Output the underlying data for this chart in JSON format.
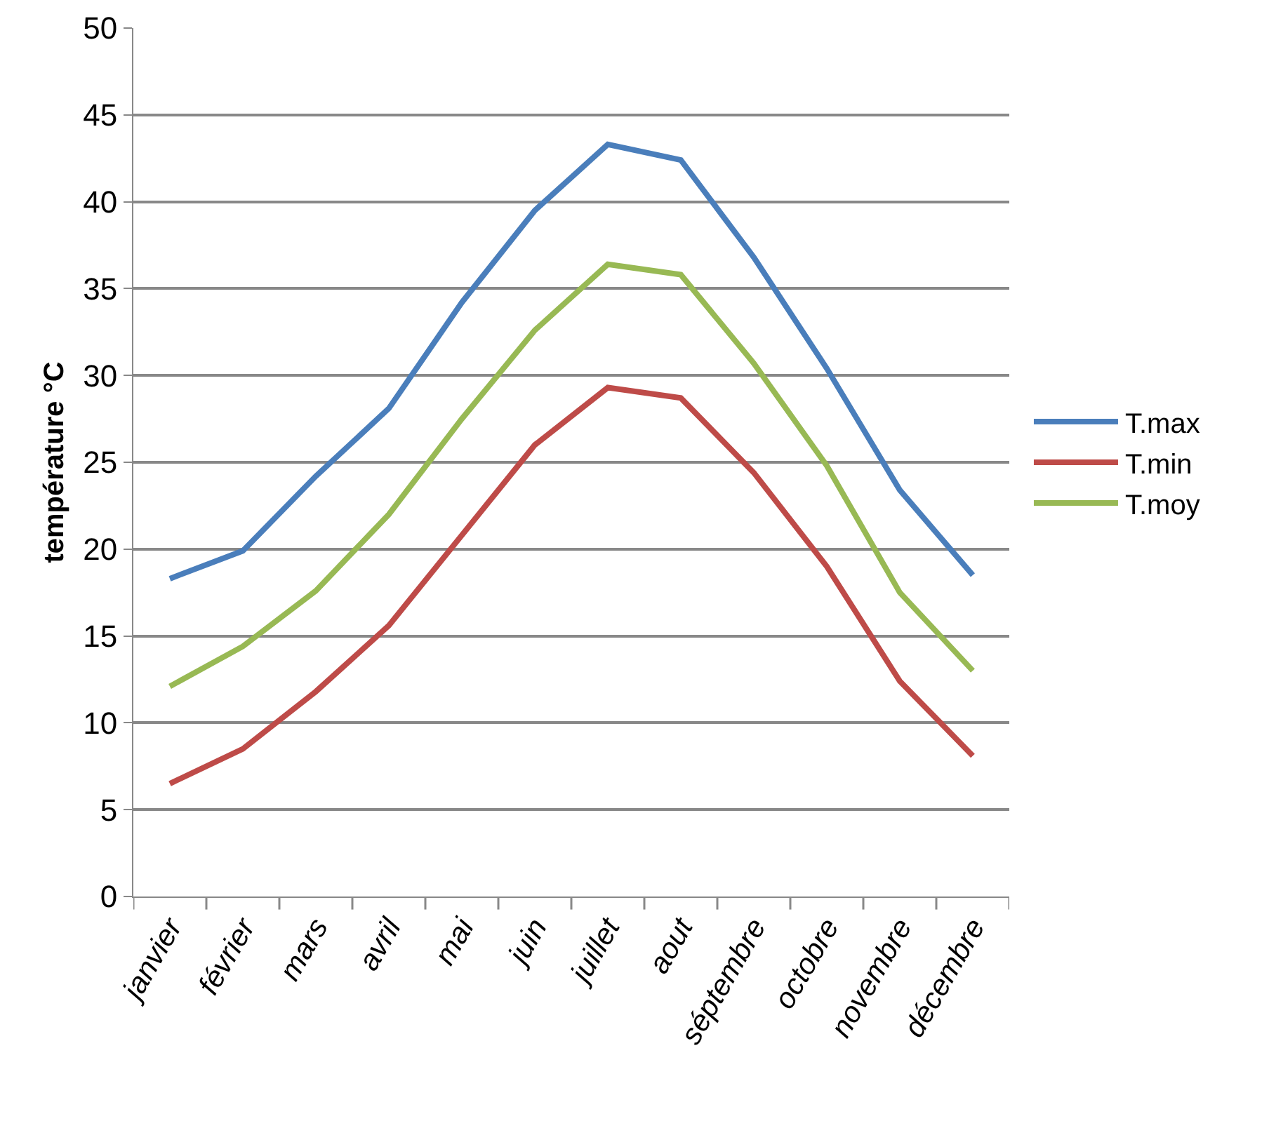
{
  "chart_data": {
    "type": "line",
    "ylabel": "température °C",
    "categories": [
      "janvier",
      "février",
      "mars",
      "avril",
      "mai",
      "juin",
      "juillet",
      "aout",
      "séptembre",
      "octobre",
      "novembre",
      "décembre"
    ],
    "series": [
      {
        "name": "T.max",
        "color": "#4a7ebb",
        "values": [
          18.3,
          19.9,
          24.2,
          28.1,
          34.2,
          39.5,
          43.3,
          42.4,
          36.8,
          30.4,
          23.4,
          18.5
        ]
      },
      {
        "name": "T.min",
        "color": "#be4b48",
        "values": [
          6.5,
          8.5,
          11.8,
          15.6,
          20.8,
          26,
          29.3,
          28.7,
          24.4,
          19,
          12.4,
          8.1
        ]
      },
      {
        "name": "T.moy",
        "color": "#98b954",
        "values": [
          12.1,
          14.4,
          17.6,
          22,
          27.5,
          32.6,
          36.4,
          35.8,
          30.7,
          24.8,
          17.5,
          13
        ]
      }
    ],
    "ylim": [
      0,
      50
    ],
    "yticks": [
      0,
      5,
      10,
      15,
      20,
      25,
      30,
      35,
      40,
      45,
      50
    ],
    "grid": "y",
    "legend": "right",
    "marker": "none",
    "line_style": "solid"
  }
}
